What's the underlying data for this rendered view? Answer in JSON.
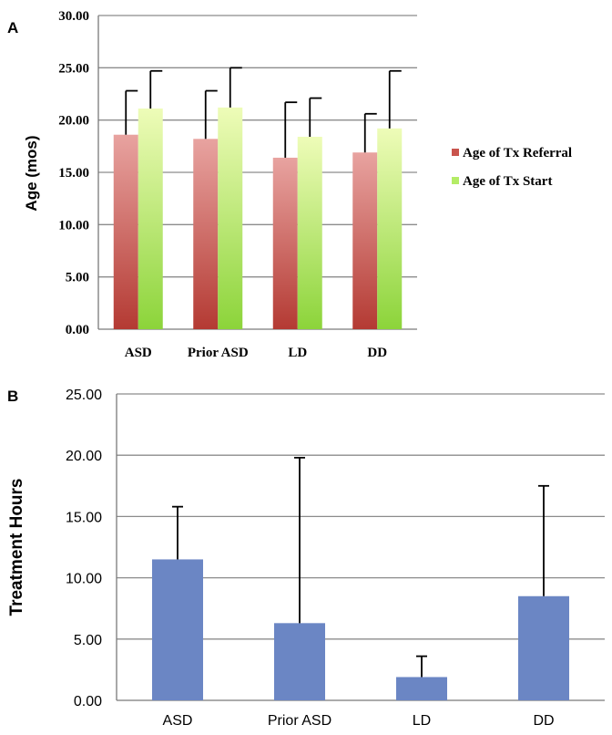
{
  "colors": {
    "referral_top": "#e8a3a0",
    "referral_bottom": "#b43a33",
    "start_top": "#eefcb8",
    "start_bottom": "#8cd43a",
    "bar_b": "#6b86c4"
  },
  "chart_data": [
    {
      "panel_label": "A",
      "type": "bar",
      "title": "",
      "xlabel": "",
      "ylabel": "Age (mos)",
      "ylim": [
        0,
        30
      ],
      "yticks": [
        "0.00",
        "5.00",
        "10.00",
        "15.00",
        "20.00",
        "25.00",
        "30.00"
      ],
      "grid": true,
      "legend_position": "right",
      "categories": [
        "ASD",
        "Prior ASD",
        "LD",
        "DD"
      ],
      "series": [
        {
          "name": "Age of Tx Referral",
          "values": [
            18.6,
            18.2,
            16.4,
            16.9
          ],
          "error": [
            4.2,
            4.6,
            5.3,
            3.7
          ]
        },
        {
          "name": "Age of Tx Start",
          "values": [
            21.1,
            21.2,
            18.4,
            19.2
          ],
          "error": [
            3.6,
            3.8,
            3.7,
            5.5
          ]
        }
      ]
    },
    {
      "panel_label": "B",
      "type": "bar",
      "title": "",
      "xlabel": "",
      "ylabel": "Treatment Hours",
      "ylim": [
        0,
        25
      ],
      "yticks": [
        "0.00",
        "5.00",
        "10.00",
        "15.00",
        "20.00",
        "25.00"
      ],
      "grid": true,
      "categories": [
        "ASD",
        "Prior ASD",
        "LD",
        "DD"
      ],
      "values": [
        11.5,
        6.3,
        1.9,
        8.5
      ],
      "error": [
        4.3,
        13.5,
        1.7,
        9.0
      ]
    }
  ]
}
